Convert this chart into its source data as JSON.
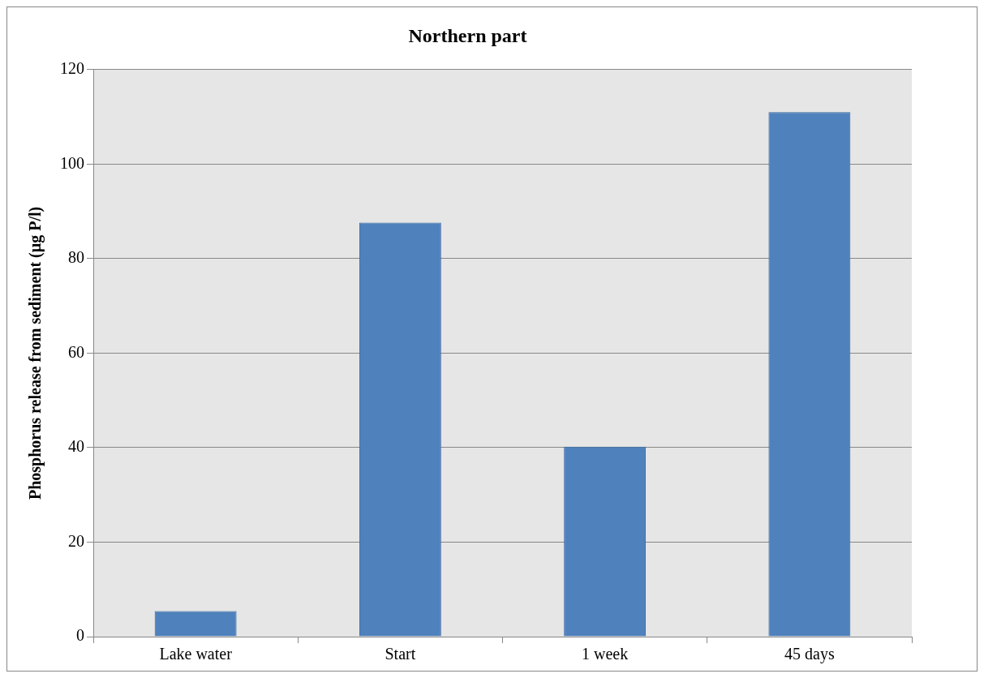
{
  "chart_data": {
    "type": "bar",
    "title": "Northern part",
    "ylabel": "Phosphorus release from sediment (µg P/l)",
    "categories": [
      "Lake water",
      "Start",
      "1 week",
      "45 days"
    ],
    "values": [
      5.4,
      87.6,
      40.2,
      111.0
    ],
    "color": "#4f81bd",
    "ylim": [
      0,
      120
    ],
    "yticks": [
      0,
      20,
      40,
      60,
      80,
      100,
      120
    ],
    "grid": "y"
  }
}
